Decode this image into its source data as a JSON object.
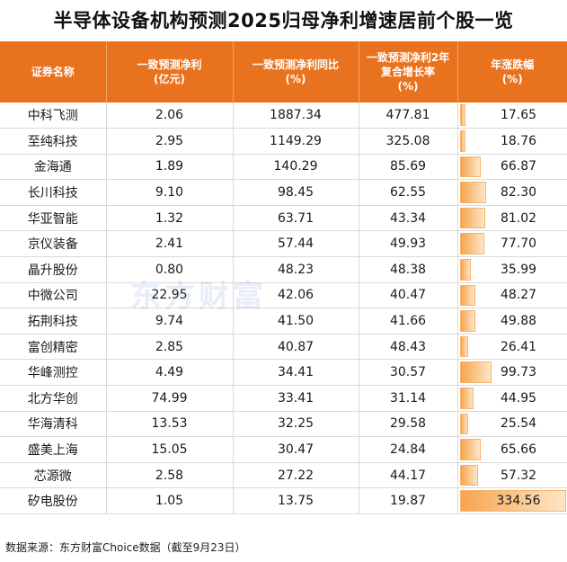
{
  "title": "半导体设备机构预测2025归母净利增速居前个股一览",
  "headers": [
    [
      "证券名称"
    ],
    [
      "一致预测净利",
      "(亿元)"
    ],
    [
      "一致预测净利同比",
      "(%)"
    ],
    [
      "一致预测净利2年",
      "复合增长率",
      "(%)"
    ],
    [
      "年涨跌幅",
      "(%)"
    ]
  ],
  "rows": [
    {
      "name": "中科飞测",
      "profit": "2.06",
      "yoy": "1887.34",
      "cagr": "477.81",
      "change": "17.65",
      "change_value": 17.65
    },
    {
      "name": "至纯科技",
      "profit": "2.95",
      "yoy": "1149.29",
      "cagr": "325.08",
      "change": "18.76",
      "change_value": 18.76
    },
    {
      "name": "金海通",
      "profit": "1.89",
      "yoy": "140.29",
      "cagr": "85.69",
      "change": "66.87",
      "change_value": 66.87
    },
    {
      "name": "长川科技",
      "profit": "9.10",
      "yoy": "98.45",
      "cagr": "62.55",
      "change": "82.30",
      "change_value": 82.3
    },
    {
      "name": "华亚智能",
      "profit": "1.32",
      "yoy": "63.71",
      "cagr": "43.34",
      "change": "81.02",
      "change_value": 81.02
    },
    {
      "name": "京仪装备",
      "profit": "2.41",
      "yoy": "57.44",
      "cagr": "49.93",
      "change": "77.70",
      "change_value": 77.7
    },
    {
      "name": "晶升股份",
      "profit": "0.80",
      "yoy": "48.23",
      "cagr": "48.38",
      "change": "35.99",
      "change_value": 35.99
    },
    {
      "name": "中微公司",
      "profit": "22.95",
      "yoy": "42.06",
      "cagr": "40.47",
      "change": "48.27",
      "change_value": 48.27
    },
    {
      "name": "拓荆科技",
      "profit": "9.74",
      "yoy": "41.50",
      "cagr": "41.66",
      "change": "49.88",
      "change_value": 49.88
    },
    {
      "name": "富创精密",
      "profit": "2.85",
      "yoy": "40.87",
      "cagr": "48.43",
      "change": "26.41",
      "change_value": 26.41
    },
    {
      "name": "华峰测控",
      "profit": "4.49",
      "yoy": "34.41",
      "cagr": "30.57",
      "change": "99.73",
      "change_value": 99.73
    },
    {
      "name": "北方华创",
      "profit": "74.99",
      "yoy": "33.41",
      "cagr": "31.14",
      "change": "44.95",
      "change_value": 44.95
    },
    {
      "name": "华海清科",
      "profit": "13.53",
      "yoy": "32.25",
      "cagr": "29.58",
      "change": "25.54",
      "change_value": 25.54
    },
    {
      "name": "盛美上海",
      "profit": "15.05",
      "yoy": "30.47",
      "cagr": "24.84",
      "change": "65.66",
      "change_value": 65.66
    },
    {
      "name": "芯源微",
      "profit": "2.58",
      "yoy": "27.22",
      "cagr": "44.17",
      "change": "57.32",
      "change_value": 57.32
    },
    {
      "name": "矽电股份",
      "profit": "1.05",
      "yoy": "13.75",
      "cagr": "19.87",
      "change": "334.56",
      "change_value": 334.56
    }
  ],
  "bar_max": 334.56,
  "colors": {
    "header": "#e9721f",
    "bar": "#f6a54f"
  },
  "watermark": "东方财富",
  "footer": "数据来源：东方财富Choice数据（截至9月23日）"
}
